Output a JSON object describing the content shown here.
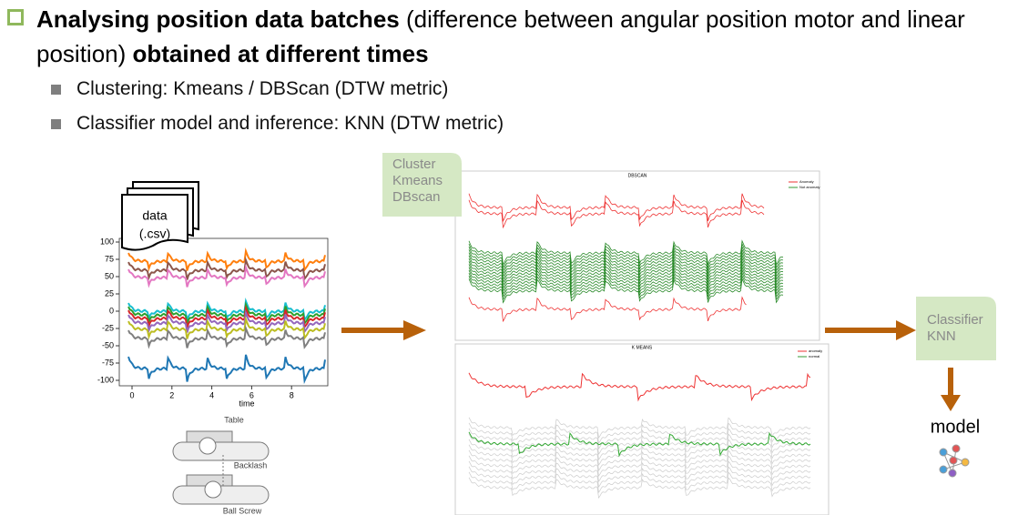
{
  "header": {
    "title_parts": [
      "Analysing position data batches",
      " (difference between angular position motor and linear position) ",
      "obtained at different times"
    ]
  },
  "bullets": [
    "Clustering: Kmeans / DBScan (DTW metric)",
    "Classifier model and inference: KNN (DTW metric)"
  ],
  "figure": {
    "data_file": [
      "data",
      "(.csv)"
    ],
    "time_plot": {
      "yticks": [
        100,
        75,
        50,
        25,
        0,
        -25,
        -50,
        -75,
        -100
      ],
      "xticks": [
        0,
        2,
        4,
        6,
        8
      ],
      "xlabel": "time"
    },
    "mechanism": [
      "Table",
      "Backlash",
      "Ball Screw"
    ],
    "cluster_box": [
      "Cluster",
      "Kmeans",
      "DBscan"
    ],
    "dbscan": {
      "title": "DBSCAN",
      "legend": [
        "Anomaly",
        "Not anomaly"
      ]
    },
    "kmeans": {
      "title": "K MEANS",
      "legend": [
        "anomaly",
        "normal"
      ]
    },
    "classifier_box": [
      "Classifier",
      "KNN"
    ],
    "output": "model"
  }
}
